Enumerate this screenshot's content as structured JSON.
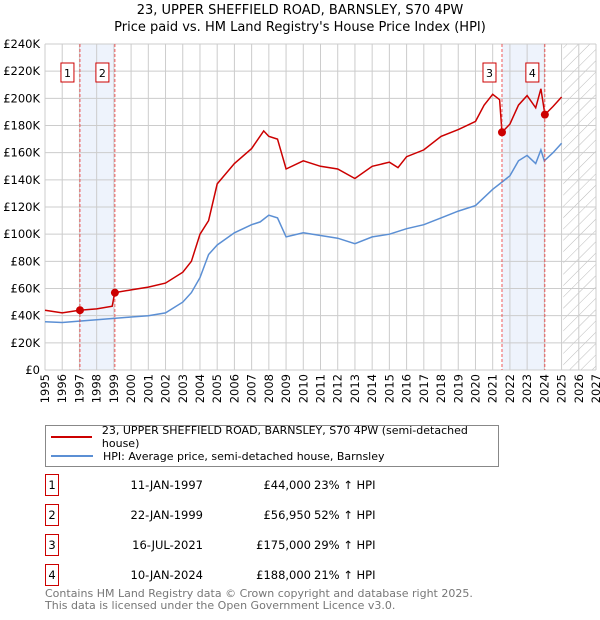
{
  "title": "23, UPPER SHEFFIELD ROAD, BARNSLEY, S70 4PW",
  "subtitle": "Price paid vs. HM Land Registry's House Price Index (HPI)",
  "chart_data": {
    "type": "line",
    "xlim": [
      1995,
      2027
    ],
    "ylim": [
      0,
      240000
    ],
    "x_ticks": [
      "1995",
      "1996",
      "1997",
      "1998",
      "1999",
      "2000",
      "2001",
      "2002",
      "2003",
      "2004",
      "2005",
      "2006",
      "2007",
      "2008",
      "2009",
      "2010",
      "2011",
      "2012",
      "2013",
      "2014",
      "2015",
      "2016",
      "2017",
      "2018",
      "2019",
      "2020",
      "2021",
      "2022",
      "2023",
      "2024",
      "2025",
      "2026",
      "2027"
    ],
    "y_ticks": [
      "£0",
      "£20K",
      "£40K",
      "£60K",
      "£80K",
      "£100K",
      "£120K",
      "£140K",
      "£160K",
      "£180K",
      "£200K",
      "£220K",
      "£240K"
    ],
    "grid": true,
    "series": [
      {
        "name": "23, UPPER SHEFFIELD ROAD, BARNSLEY, S70 4PW (semi-detached house)",
        "color": "#cc0000",
        "x": [
          1995,
          1996,
          1997,
          1998,
          1998.9,
          1999.05,
          2000,
          2001,
          2002,
          2003,
          2003.5,
          2004,
          2004.5,
          2005,
          2006,
          2007,
          2007.7,
          2008,
          2008.5,
          2009,
          2010,
          2011,
          2012,
          2013,
          2014,
          2015,
          2015.5,
          2016,
          2017,
          2018,
          2019,
          2020,
          2020.5,
          2021,
          2021.4,
          2021.54,
          2022,
          2022.5,
          2023,
          2023.5,
          2023.8,
          2024.03,
          2024.5,
          2025
        ],
        "y": [
          44000,
          42000,
          44000,
          45000,
          47000,
          56950,
          59000,
          61000,
          64000,
          72000,
          80000,
          100000,
          110000,
          137000,
          152000,
          163000,
          176000,
          172000,
          170000,
          148000,
          154000,
          150000,
          148000,
          141000,
          150000,
          153000,
          149000,
          157000,
          162000,
          172000,
          177000,
          183000,
          195000,
          203000,
          199000,
          175000,
          181000,
          195000,
          202000,
          193000,
          207000,
          188000,
          194000,
          201000
        ]
      },
      {
        "name": "HPI: Average price, semi-detached house, Barnsley",
        "color": "#5b8fd4",
        "x": [
          1995,
          1996,
          1997,
          1998,
          1999,
          2000,
          2001,
          2002,
          2003,
          2003.5,
          2004,
          2004.5,
          2005,
          2006,
          2007,
          2007.5,
          2008,
          2008.5,
          2009,
          2010,
          2011,
          2012,
          2013,
          2014,
          2015,
          2016,
          2017,
          2018,
          2019,
          2020,
          2021,
          2021.5,
          2022,
          2022.5,
          2023,
          2023.5,
          2023.8,
          2024,
          2024.5,
          2025
        ],
        "y": [
          35500,
          35000,
          36000,
          37000,
          38000,
          39000,
          40000,
          42000,
          50000,
          57000,
          68000,
          85000,
          92000,
          101000,
          107000,
          109000,
          114000,
          112000,
          98000,
          101000,
          99000,
          97000,
          93000,
          98000,
          100000,
          104000,
          107000,
          112000,
          117000,
          121000,
          133000,
          138000,
          143000,
          154000,
          158000,
          152000,
          162000,
          154000,
          160000,
          167000
        ]
      }
    ],
    "sales": [
      {
        "label": "1",
        "x": 1997.03,
        "y": 44000
      },
      {
        "label": "2",
        "x": 1999.06,
        "y": 56950
      },
      {
        "label": "3",
        "x": 2021.54,
        "y": 175000
      },
      {
        "label": "4",
        "x": 2024.03,
        "y": 188000
      }
    ],
    "shaded_ranges": [
      [
        1997.03,
        1999.06
      ],
      [
        2021.54,
        2024.03
      ]
    ],
    "forecast_hatch_from": 2025.1
  },
  "legend": {
    "red": "23, UPPER SHEFFIELD ROAD, BARNSLEY, S70 4PW (semi-detached house)",
    "blue": "HPI: Average price, semi-detached house, Barnsley"
  },
  "transactions": [
    {
      "n": "1",
      "date": "11-JAN-1997",
      "price": "£44,000",
      "hpi": "23% ↑ HPI"
    },
    {
      "n": "2",
      "date": "22-JAN-1999",
      "price": "£56,950",
      "hpi": "52% ↑ HPI"
    },
    {
      "n": "3",
      "date": "16-JUL-2021",
      "price": "£175,000",
      "hpi": "29% ↑ HPI"
    },
    {
      "n": "4",
      "date": "10-JAN-2024",
      "price": "£188,000",
      "hpi": "21% ↑ HPI"
    }
  ],
  "footer": {
    "line1": "Contains HM Land Registry data © Crown copyright and database right 2025.",
    "line2": "This data is licensed under the Open Government Licence v3.0."
  }
}
